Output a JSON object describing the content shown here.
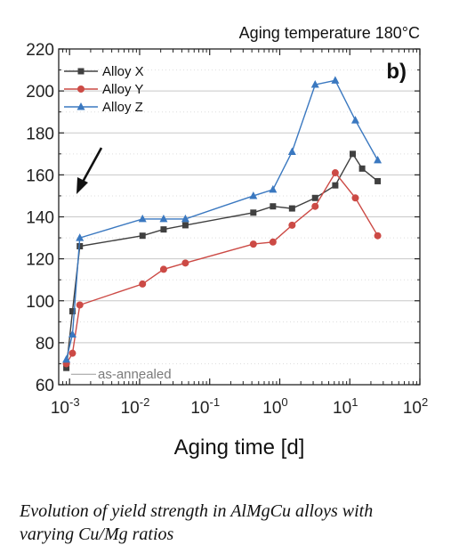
{
  "caption": {
    "line1": "Evolution of yield strength in AlMgCu alloys with",
    "line2": "varying Cu/Mg ratios"
  },
  "chart_data": {
    "type": "line",
    "subtitle": "Aging temperature 180°C",
    "panel_label": "b)",
    "xlabel": "Aging time [d]",
    "ylabel": "",
    "xscale": "log",
    "xlim": [
      0.0007,
      100
    ],
    "ylim": [
      60,
      220
    ],
    "yticks": [
      60,
      80,
      100,
      120,
      140,
      160,
      180,
      200,
      220
    ],
    "xticks": [
      {
        "base": "10",
        "exp": "-3",
        "value": 0.001
      },
      {
        "base": "10",
        "exp": "-2",
        "value": 0.01
      },
      {
        "base": "10",
        "exp": "-1",
        "value": 0.1
      },
      {
        "base": "10",
        "exp": "0",
        "value": 1
      },
      {
        "base": "10",
        "exp": "1",
        "value": 10
      },
      {
        "base": "10",
        "exp": "2",
        "value": 100
      }
    ],
    "grid": "horizontal",
    "legend_position": "top-left",
    "annotation": "as-annealed",
    "series": [
      {
        "name": "Alloy X",
        "color": "#404040",
        "marker": "square",
        "x": [
          0.0009,
          0.0011,
          0.0014,
          0.011,
          0.022,
          0.045,
          0.42,
          0.8,
          1.5,
          3.2,
          6.2,
          11,
          15,
          25
        ],
        "y": [
          68,
          95,
          126,
          131,
          134,
          136,
          142,
          145,
          144,
          149,
          155,
          170,
          163,
          157
        ]
      },
      {
        "name": "Alloy Y",
        "color": "#cc4a45",
        "marker": "circle",
        "x": [
          0.0009,
          0.0011,
          0.0014,
          0.011,
          0.022,
          0.045,
          0.42,
          0.8,
          1.5,
          3.2,
          6.2,
          12,
          25
        ],
        "y": [
          70,
          75,
          98,
          108,
          115,
          118,
          127,
          128,
          136,
          145,
          161,
          149,
          131
        ]
      },
      {
        "name": "Alloy Z",
        "color": "#3a78c0",
        "marker": "triangle",
        "x": [
          0.0009,
          0.0011,
          0.0014,
          0.011,
          0.022,
          0.045,
          0.42,
          0.8,
          1.5,
          3.2,
          6.2,
          12,
          25
        ],
        "y": [
          72,
          84,
          130,
          139,
          139,
          139,
          150,
          153,
          171,
          203,
          205,
          186,
          167
        ]
      }
    ]
  }
}
